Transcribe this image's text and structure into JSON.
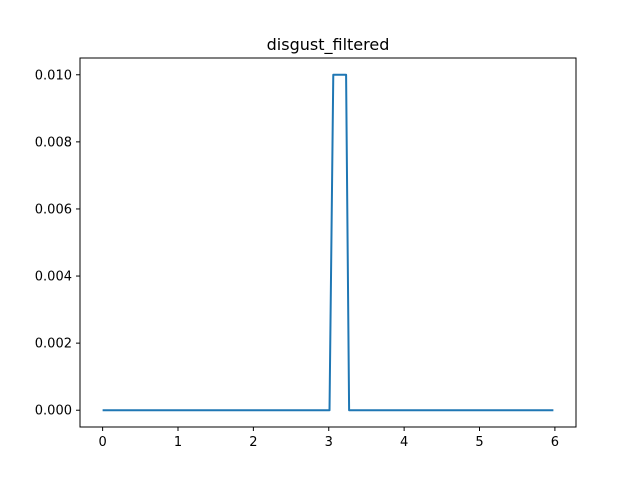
{
  "chart_data": {
    "type": "line",
    "title": "disgust_filtered",
    "xlabel": "",
    "ylabel": "",
    "xlim": [
      -0.3,
      6.28
    ],
    "ylim": [
      -0.0005,
      0.0105
    ],
    "x_ticks": [
      0,
      1,
      2,
      3,
      4,
      5,
      6
    ],
    "x_tick_labels": [
      "0",
      "1",
      "2",
      "3",
      "4",
      "5",
      "6"
    ],
    "y_ticks": [
      0.0,
      0.002,
      0.004,
      0.006,
      0.008,
      0.01
    ],
    "y_tick_labels": [
      "0.000",
      "0.002",
      "0.004",
      "0.006",
      "0.008",
      "0.010"
    ],
    "grid": false,
    "series": [
      {
        "color": "#1f77b4",
        "x": [
          0,
          3.01,
          3.06,
          3.23,
          3.27,
          5.98
        ],
        "y": [
          0.0,
          0.0,
          0.01,
          0.01,
          0.0,
          0.0
        ]
      }
    ]
  }
}
